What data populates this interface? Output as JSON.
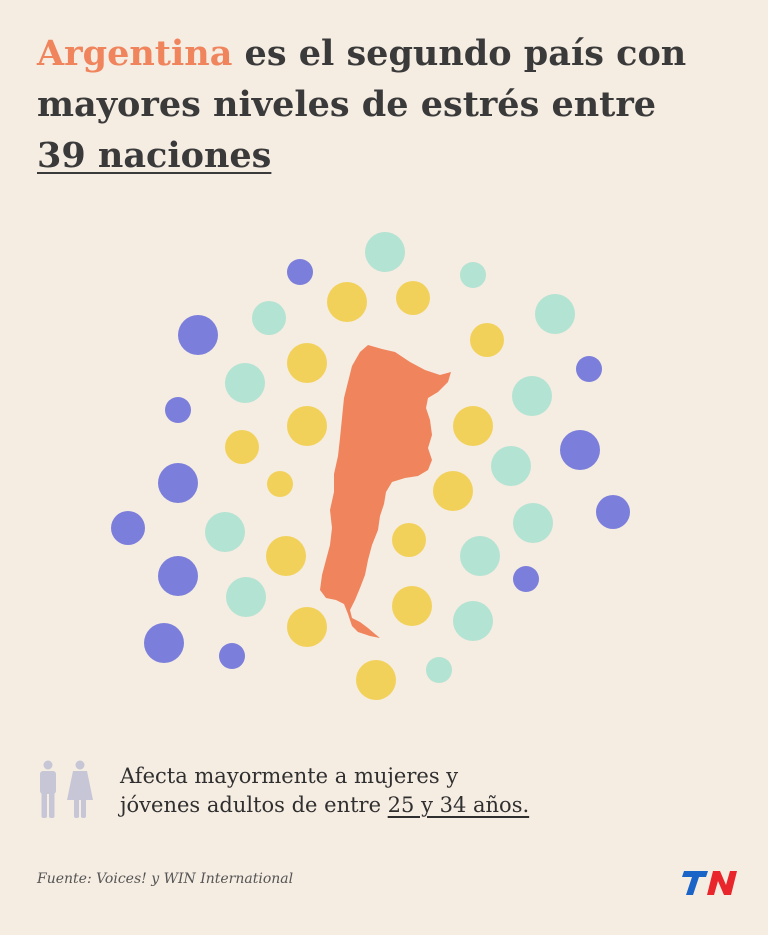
{
  "header": {
    "title_highlight": "Argentina",
    "title_line1_rest": " es el segundo país con",
    "title_line2": "mayores niveles de estrés entre",
    "title_line3_underlined": "39 naciones"
  },
  "graphic": {
    "icon": "argentina-map-icon",
    "dot_colors": {
      "purple": "#7b7fdb",
      "mint": "#b3e3d2",
      "yellow": "#f2d15a",
      "map": "#f0845c"
    }
  },
  "caption": {
    "icon": "man-woman-icon",
    "line1": "Afecta mayormente a mujeres y",
    "line2_prefix": "jóvenes adultos de entre ",
    "line2_underlined": "25 y 34 años."
  },
  "footer": {
    "source": "Fuente: Voices! y WIN International",
    "logo": "TN"
  }
}
